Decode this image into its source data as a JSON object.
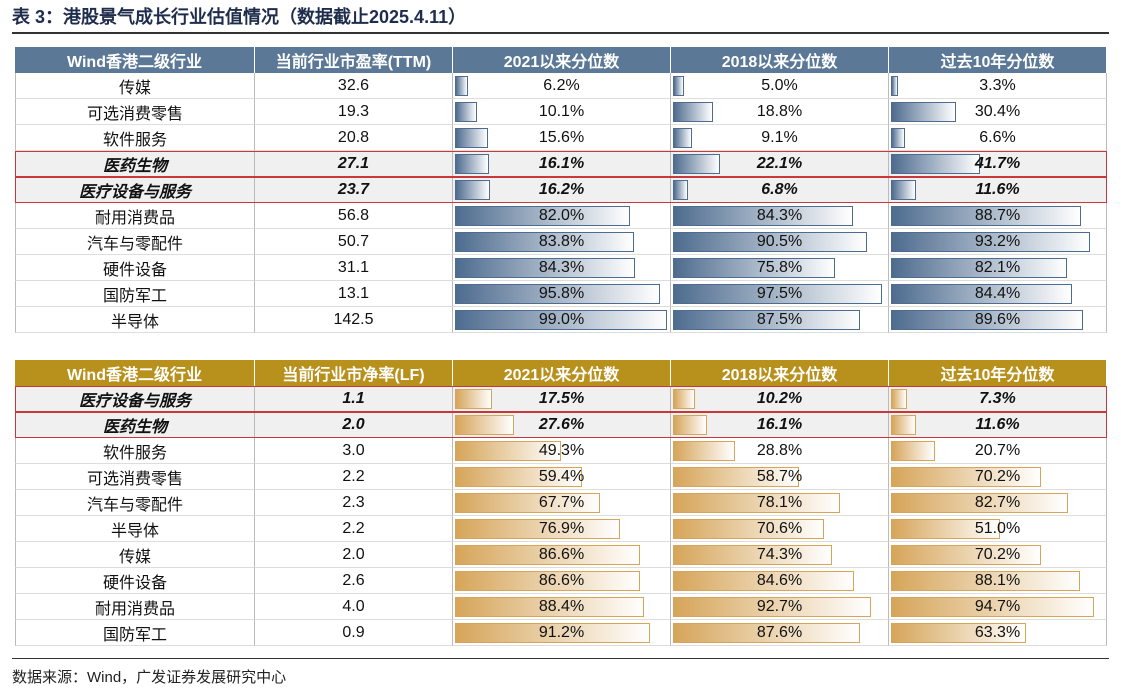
{
  "title": "表 3：港股景气成长行业估值情况（数据截止2025.4.11）",
  "tables": [
    {
      "header_color": "#5b7896",
      "bar_color": "#4e6c8f",
      "header": [
        "Wind香港二级行业",
        "当前行业市盈率(TTM)",
        "2021以来分位数",
        "2018以来分位数",
        "过去10年分位数"
      ],
      "rows": [
        {
          "highlight": false,
          "cells": [
            "传媒",
            "32.6",
            {
              "value": 6.2,
              "label": "6.2%"
            },
            {
              "value": 5,
              "label": "5.0%"
            },
            {
              "value": 3.3,
              "label": "3.3%"
            }
          ]
        },
        {
          "highlight": false,
          "cells": [
            "可选消费零售",
            "19.3",
            {
              "value": 10.1,
              "label": "10.1%"
            },
            {
              "value": 18.8,
              "label": "18.8%"
            },
            {
              "value": 30.4,
              "label": "30.4%"
            }
          ]
        },
        {
          "highlight": false,
          "cells": [
            "软件服务",
            "20.8",
            {
              "value": 15.6,
              "label": "15.6%"
            },
            {
              "value": 9.1,
              "label": "9.1%"
            },
            {
              "value": 6.6,
              "label": "6.6%"
            }
          ]
        },
        {
          "highlight": true,
          "cells": [
            "医药生物",
            "27.1",
            {
              "value": 16.1,
              "label": "16.1%"
            },
            {
              "value": 22.1,
              "label": "22.1%"
            },
            {
              "value": 41.7,
              "label": "41.7%"
            }
          ]
        },
        {
          "highlight": true,
          "cells": [
            "医疗设备与服务",
            "23.7",
            {
              "value": 16.2,
              "label": "16.2%"
            },
            {
              "value": 6.8,
              "label": "6.8%"
            },
            {
              "value": 11.6,
              "label": "11.6%"
            }
          ]
        },
        {
          "highlight": false,
          "cells": [
            "耐用消费品",
            "56.8",
            {
              "value": 82,
              "label": "82.0%"
            },
            {
              "value": 84.3,
              "label": "84.3%"
            },
            {
              "value": 88.7,
              "label": "88.7%"
            }
          ]
        },
        {
          "highlight": false,
          "cells": [
            "汽车与零配件",
            "50.7",
            {
              "value": 83.8,
              "label": "83.8%"
            },
            {
              "value": 90.5,
              "label": "90.5%"
            },
            {
              "value": 93.2,
              "label": "93.2%"
            }
          ]
        },
        {
          "highlight": false,
          "cells": [
            "硬件设备",
            "31.1",
            {
              "value": 84.3,
              "label": "84.3%"
            },
            {
              "value": 75.8,
              "label": "75.8%"
            },
            {
              "value": 82.1,
              "label": "82.1%"
            }
          ]
        },
        {
          "highlight": false,
          "cells": [
            "国防军工",
            "13.1",
            {
              "value": 95.8,
              "label": "95.8%"
            },
            {
              "value": 97.5,
              "label": "97.5%"
            },
            {
              "value": 84.4,
              "label": "84.4%"
            }
          ]
        },
        {
          "highlight": false,
          "cells": [
            "半导体",
            "142.5",
            {
              "value": 99,
              "label": "99.0%"
            },
            {
              "value": 87.5,
              "label": "87.5%"
            },
            {
              "value": 89.6,
              "label": "89.6%"
            }
          ]
        }
      ]
    },
    {
      "header_color": "#b8901c",
      "bar_color": "#d6a55a",
      "header": [
        "Wind香港二级行业",
        "当前行业市净率(LF)",
        "2021以来分位数",
        "2018以来分位数",
        "过去10年分位数"
      ],
      "rows": [
        {
          "highlight": true,
          "cells": [
            "医疗设备与服务",
            "1.1",
            {
              "value": 17.5,
              "label": "17.5%"
            },
            {
              "value": 10.2,
              "label": "10.2%"
            },
            {
              "value": 7.3,
              "label": "7.3%"
            }
          ]
        },
        {
          "highlight": true,
          "cells": [
            "医药生物",
            "2.0",
            {
              "value": 27.6,
              "label": "27.6%"
            },
            {
              "value": 16.1,
              "label": "16.1%"
            },
            {
              "value": 11.6,
              "label": "11.6%"
            }
          ]
        },
        {
          "highlight": false,
          "cells": [
            "软件服务",
            "3.0",
            {
              "value": 49.3,
              "label": "49.3%"
            },
            {
              "value": 28.8,
              "label": "28.8%"
            },
            {
              "value": 20.7,
              "label": "20.7%"
            }
          ]
        },
        {
          "highlight": false,
          "cells": [
            "可选消费零售",
            "2.2",
            {
              "value": 59.4,
              "label": "59.4%"
            },
            {
              "value": 58.7,
              "label": "58.7%"
            },
            {
              "value": 70.2,
              "label": "70.2%"
            }
          ]
        },
        {
          "highlight": false,
          "cells": [
            "汽车与零配件",
            "2.3",
            {
              "value": 67.7,
              "label": "67.7%"
            },
            {
              "value": 78.1,
              "label": "78.1%"
            },
            {
              "value": 82.7,
              "label": "82.7%"
            }
          ]
        },
        {
          "highlight": false,
          "cells": [
            "半导体",
            "2.2",
            {
              "value": 76.9,
              "label": "76.9%"
            },
            {
              "value": 70.6,
              "label": "70.6%"
            },
            {
              "value": 51,
              "label": "51.0%"
            }
          ]
        },
        {
          "highlight": false,
          "cells": [
            "传媒",
            "2.0",
            {
              "value": 86.6,
              "label": "86.6%"
            },
            {
              "value": 74.3,
              "label": "74.3%"
            },
            {
              "value": 70.2,
              "label": "70.2%"
            }
          ]
        },
        {
          "highlight": false,
          "cells": [
            "硬件设备",
            "2.6",
            {
              "value": 86.6,
              "label": "86.6%"
            },
            {
              "value": 84.6,
              "label": "84.6%"
            },
            {
              "value": 88.1,
              "label": "88.1%"
            }
          ]
        },
        {
          "highlight": false,
          "cells": [
            "耐用消费品",
            "4.0",
            {
              "value": 88.4,
              "label": "88.4%"
            },
            {
              "value": 92.7,
              "label": "92.7%"
            },
            {
              "value": 94.7,
              "label": "94.7%"
            }
          ]
        },
        {
          "highlight": false,
          "cells": [
            "国防军工",
            "0.9",
            {
              "value": 91.2,
              "label": "91.2%"
            },
            {
              "value": 87.6,
              "label": "87.6%"
            },
            {
              "value": 63.3,
              "label": "63.3%"
            }
          ]
        }
      ]
    }
  ],
  "source": "数据来源：Wind，广发证券发展研究中心"
}
